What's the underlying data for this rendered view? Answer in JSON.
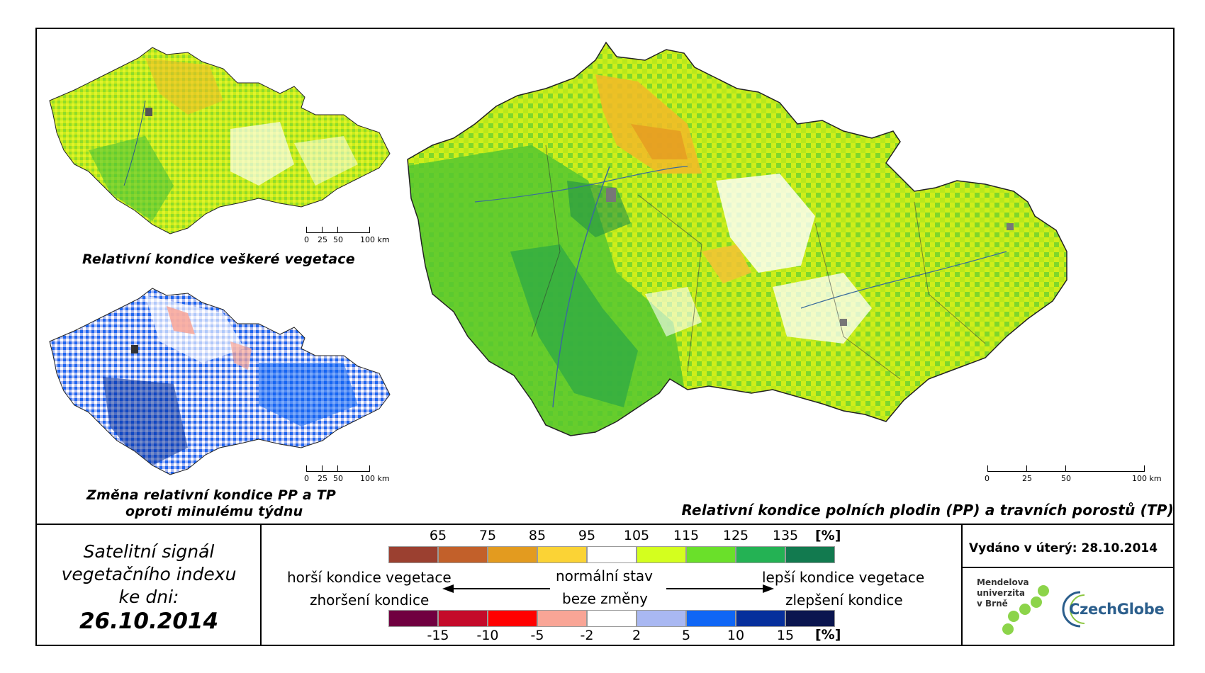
{
  "maps": {
    "main": {
      "title": "Relativní kondice polních plodin (PP) a travních porostů (TP)",
      "scale_labels": [
        "0",
        "25",
        "50",
        "100 km"
      ]
    },
    "vegetation": {
      "title": "Relativní kondice veškeré vegetace",
      "scale_labels": [
        "0",
        "25",
        "50",
        "100 km"
      ]
    },
    "change": {
      "title_line1": "Změna relativní kondice PP a TP",
      "title_line2": "oproti minulému týdnu",
      "scale_labels": [
        "0",
        "25",
        "50",
        "100 km"
      ]
    }
  },
  "satellite_box": {
    "line1": "Satelitní signál",
    "line2": "vegetačního indexu",
    "line3": "ke dni:",
    "date": "26.10.2014"
  },
  "legend": {
    "condition": {
      "ticks": [
        "65",
        "75",
        "85",
        "95",
        "105",
        "115",
        "125",
        "135"
      ],
      "unit": "[%]",
      "colors": [
        "#9b4030",
        "#c2602a",
        "#e39b1f",
        "#fbd335",
        "#ffffff",
        "#d4ff1e",
        "#6ae02a",
        "#24b254",
        "#127a4f"
      ]
    },
    "change": {
      "ticks": [
        "-15",
        "-10",
        "-5",
        "-2",
        "2",
        "5",
        "10",
        "15"
      ],
      "unit": "[%]",
      "colors": [
        "#700040",
        "#c40a2a",
        "#ff0000",
        "#f9a596",
        "#ffffff",
        "#a9b8f2",
        "#0f66f5",
        "#062f9c",
        "#0a154f"
      ]
    },
    "worse_condition": "horší kondice vegetace",
    "worsening": "zhoršení kondice",
    "normal_state": "normální stav",
    "no_change": "beze změny",
    "better_condition": "lepší kondice vegetace",
    "improvement": "zlepšení kondice"
  },
  "issued": "Vydáno v úterý: 28.10.2014",
  "logos": {
    "mendel_line1": "Mendelova",
    "mendel_line2": "univerzita",
    "mendel_line3": "v Brně",
    "czechglobe": "CzechGlobe"
  }
}
